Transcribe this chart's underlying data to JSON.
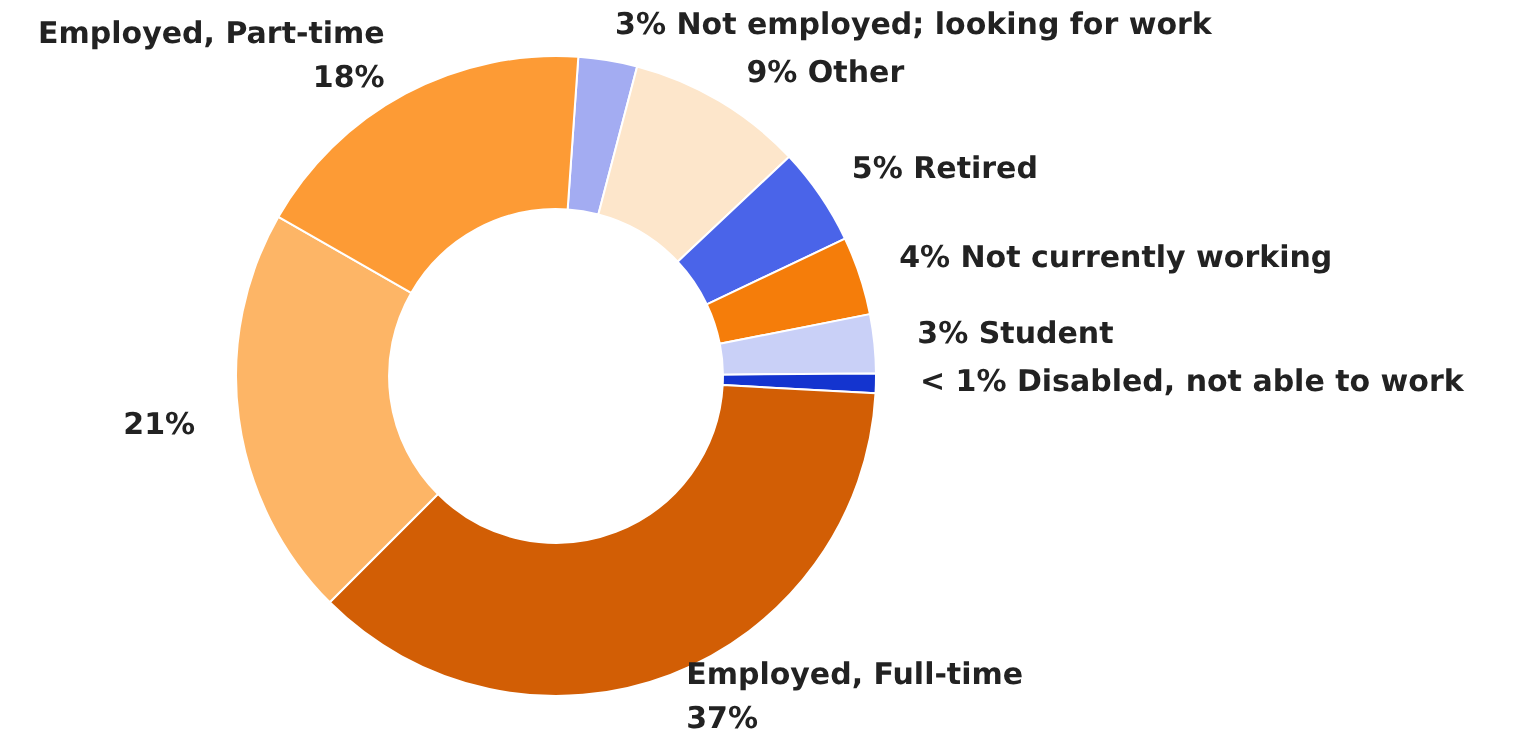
{
  "chart_data": {
    "type": "donut",
    "categories": [
      "Not employed; looking for work",
      "Other",
      "Retired",
      "Not currently working",
      "Student",
      "Disabled, not able to work",
      "Employed, Full-time",
      null,
      "Employed, Part-time"
    ],
    "values": [
      3,
      9,
      5,
      4,
      3,
      1,
      37,
      21,
      18
    ],
    "value_labels": [
      "3%",
      "9%",
      "5%",
      "4%",
      "3%",
      "< 1%",
      "37%",
      "21%",
      "18%"
    ],
    "colors": [
      "#a3acf2",
      "#fde6cb",
      "#4a64e9",
      "#f57d0a",
      "#c9d0f7",
      "#1434cf",
      "#d25e05",
      "#fdb566",
      "#fd9b35"
    ],
    "legend": false
  }
}
